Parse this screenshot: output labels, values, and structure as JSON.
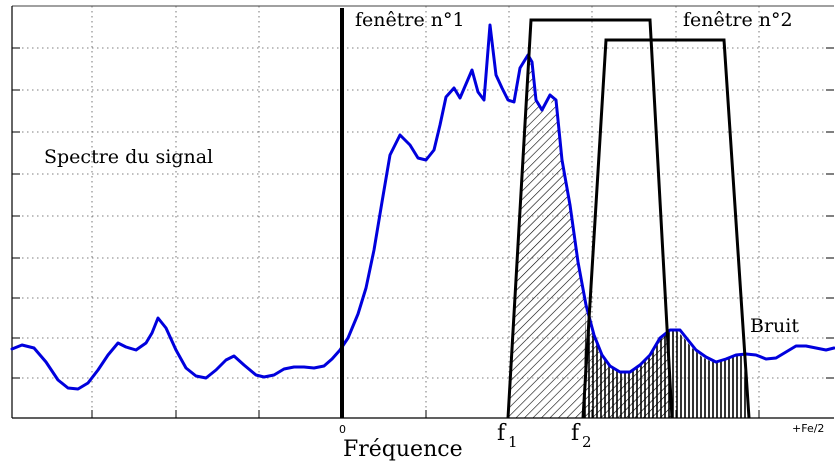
{
  "labels": {
    "window1": "fenêtre n°1",
    "window2": "fenêtre n°2",
    "spectrum": "Spectre du signal",
    "noise": "Bruit",
    "x_zero": "0",
    "x_end": "+Fe/2",
    "xlabel": "Fréquence",
    "f1_main": "f",
    "f1_sub": "1",
    "f2_main": "f",
    "f2_sub": "2"
  },
  "colors": {
    "signal": "#0000dd",
    "frame": "#000000",
    "grid": "#555555"
  }
}
